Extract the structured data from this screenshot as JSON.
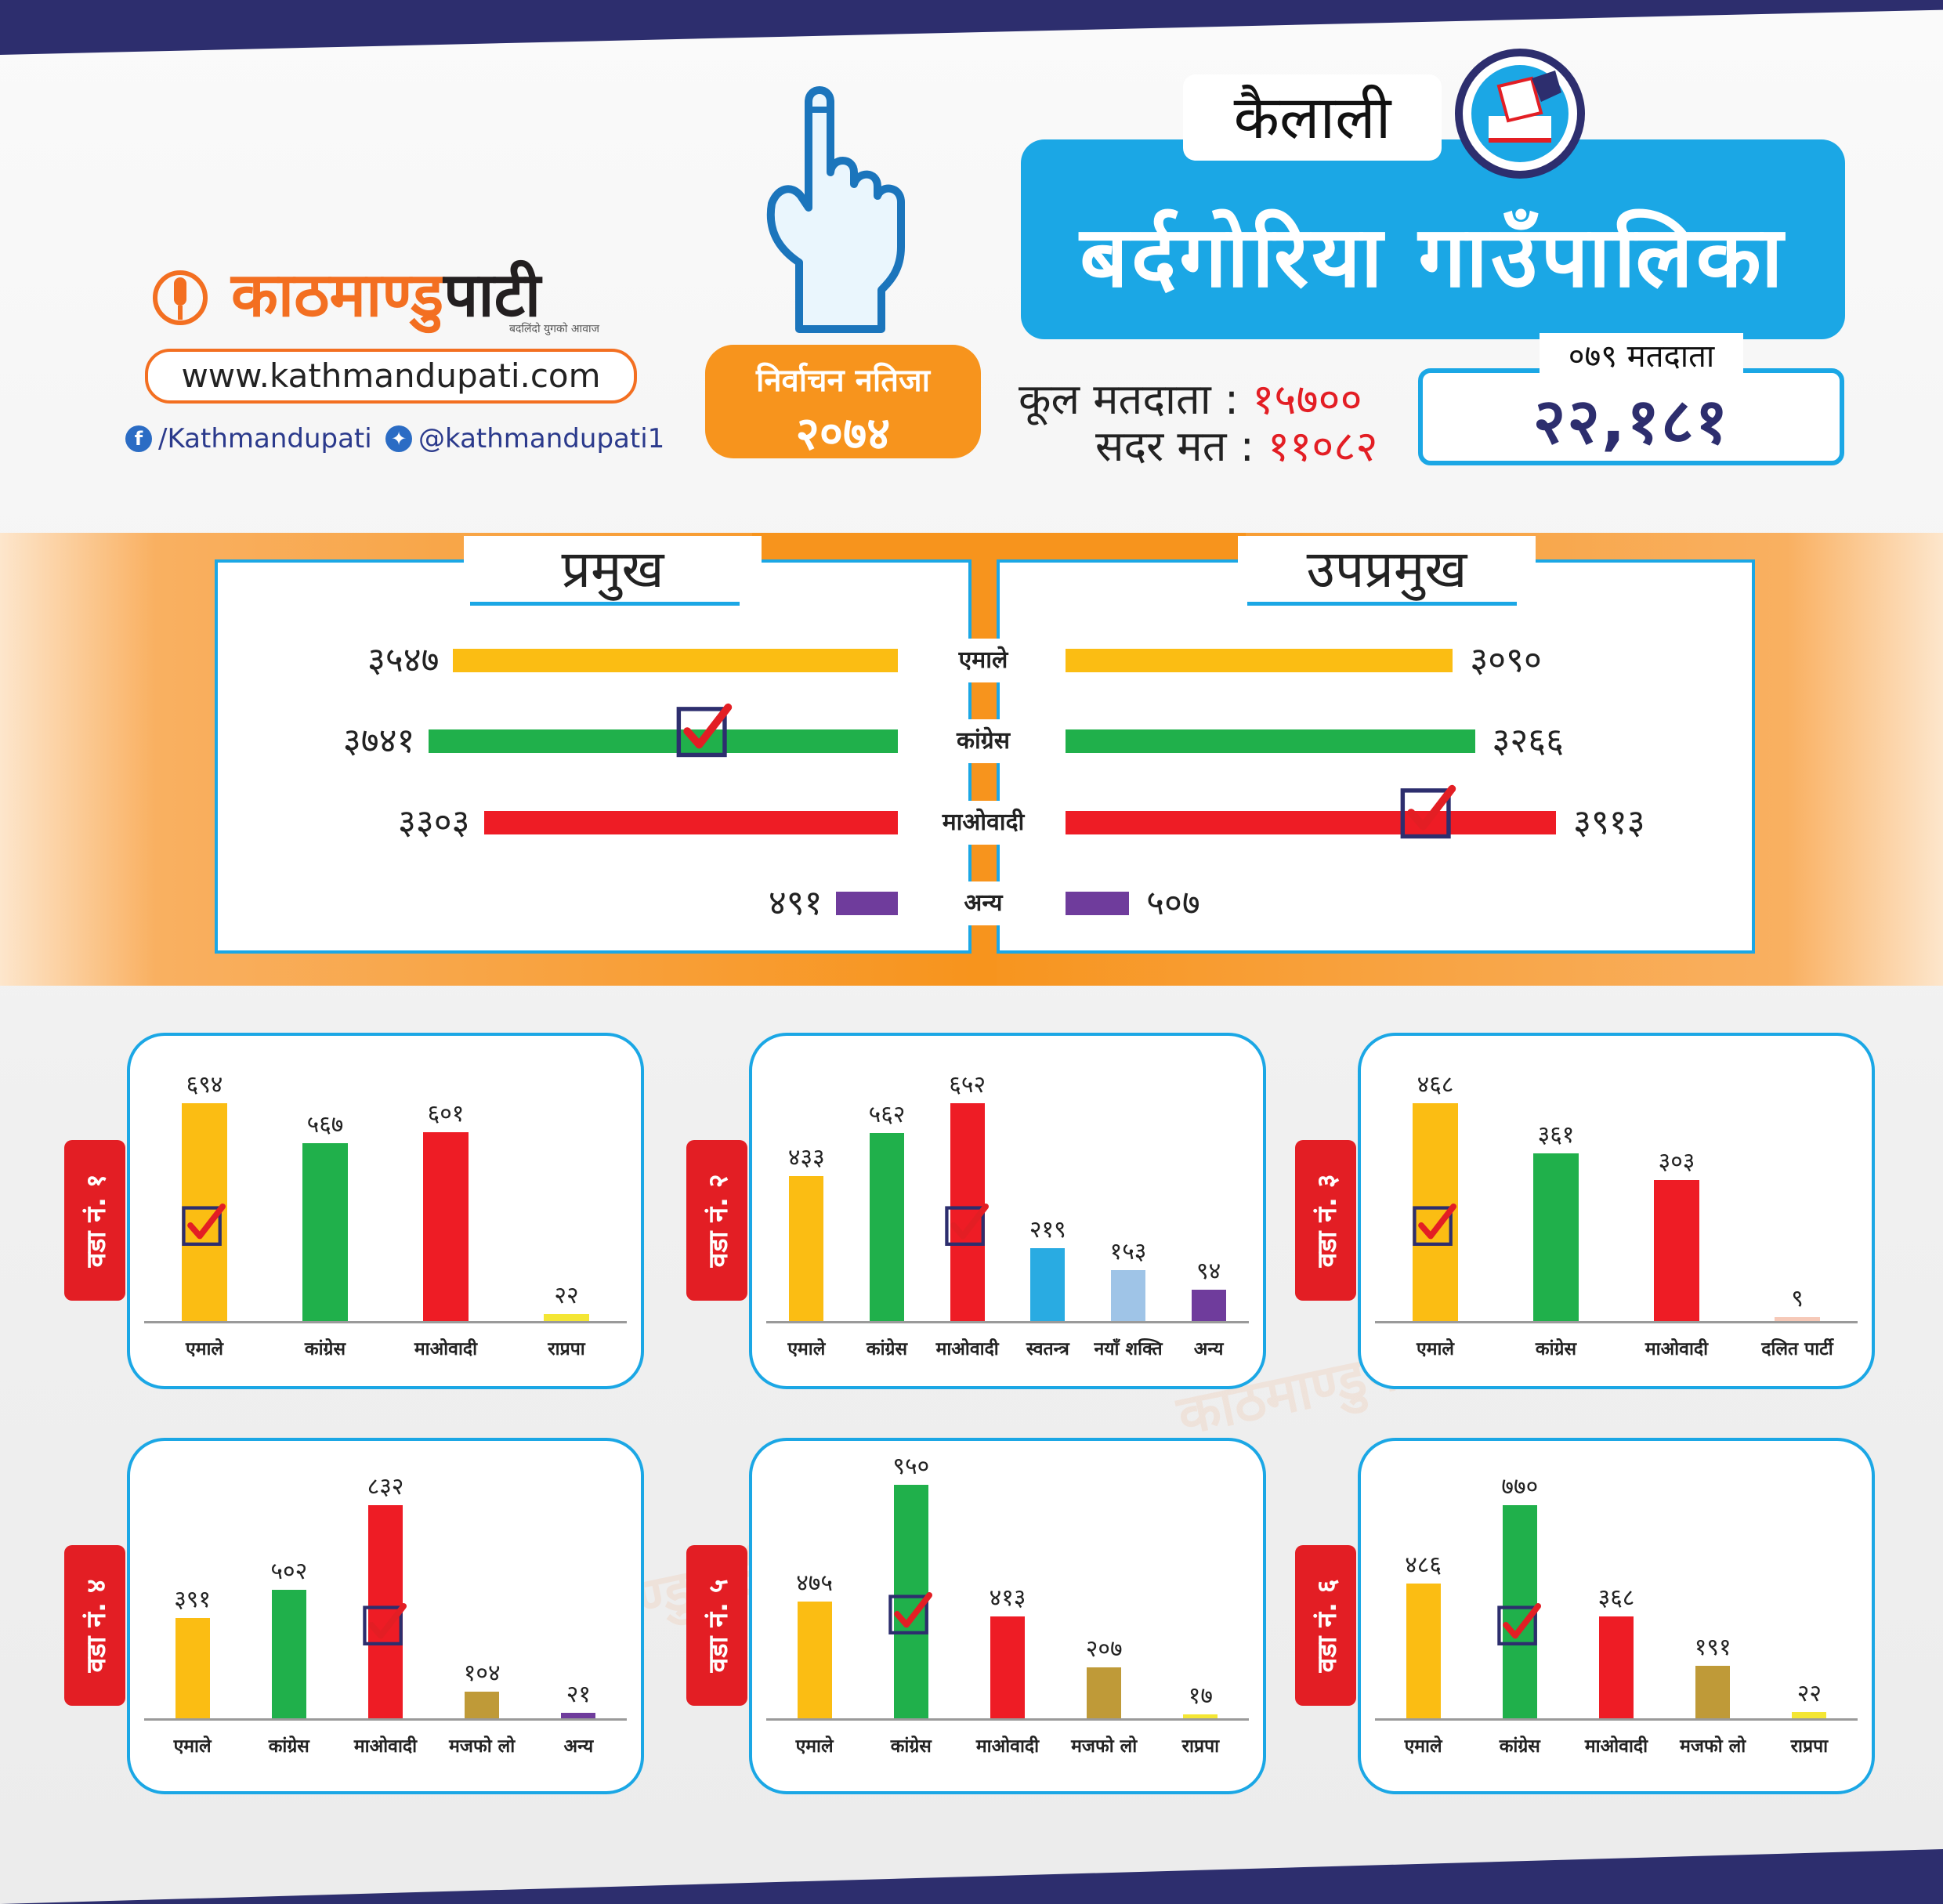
{
  "colors": {
    "navy": "#2d2e6e",
    "blue": "#1ba7e5",
    "orange": "#f7941d",
    "red": "#e31e24",
    "emale": "#fbbd13",
    "congress": "#20b04b",
    "maoist": "#ee1c25",
    "anya": "#6f3c9c",
    "rapra": "#f4e634",
    "swatantra": "#29abe2",
    "naya_shakti": "#9fc4e7",
    "majafo": "#bf9a38",
    "dalit": "#f6c9b8"
  },
  "brand": {
    "logo_prefix": "काठमाण्डु",
    "logo_suffix": "पाटी",
    "tagline": "बदलिंदो युगको आवाज",
    "website": "www.kathmandupati.com",
    "facebook": "/Kathmandupati",
    "twitter": "@kathmandupati1",
    "logo_icon": "mic-icon"
  },
  "result_badge": {
    "line1": "निर्वाचन नतिजा",
    "line2": "२०७४"
  },
  "header": {
    "district": "कैलाली",
    "municipality": "बर्दगोरिया गाउँपालिका",
    "total_voters_label": "कूल मतदाता :",
    "total_voters_value": "१५७००",
    "valid_votes_label": "सदर मत :",
    "valid_votes_value": "११०८२",
    "voters_079_label": "०७९ मतदाता",
    "voters_079_value": "२२,१८१"
  },
  "chart_data": [
    {
      "type": "bar",
      "orientation": "horizontal",
      "title": "प्रमुख",
      "categories": [
        "एमाले",
        "कांग्रेस",
        "माओवादी",
        "अन्य"
      ],
      "values": [
        3547,
        3741,
        3303,
        491
      ],
      "labels": [
        "३५४७",
        "३७४१",
        "३३०३",
        "४९१"
      ],
      "winner": "कांग्रेस",
      "xlim": [
        0,
        4000
      ]
    },
    {
      "type": "bar",
      "orientation": "horizontal",
      "title": "उपप्रमुख",
      "categories": [
        "एमाले",
        "कांग्रेस",
        "माओवादी",
        "अन्य"
      ],
      "values": [
        3090,
        3266,
        3913,
        507
      ],
      "labels": [
        "३०९०",
        "३२६६",
        "३९१३",
        "५०७"
      ],
      "winner": "माओवादी",
      "xlim": [
        0,
        4000
      ]
    },
    {
      "type": "bar",
      "title": "वडा नं. १",
      "categories": [
        "एमाले",
        "कांग्रेस",
        "माओवादी",
        "राप्रपा"
      ],
      "values": [
        694,
        567,
        601,
        22
      ],
      "labels": [
        "६९४",
        "५६७",
        "६०१",
        "२२"
      ],
      "colors": [
        "#fbbd13",
        "#20b04b",
        "#ee1c25",
        "#f4e634"
      ],
      "winner_index": 0,
      "ylim": [
        0,
        700
      ]
    },
    {
      "type": "bar",
      "title": "वडा नं. २",
      "categories": [
        "एमाले",
        "कांग्रेस",
        "माओवादी",
        "स्वतन्त्र",
        "नयाँ शक्ति",
        "अन्य"
      ],
      "values": [
        433,
        562,
        652,
        219,
        153,
        94
      ],
      "labels": [
        "४३३",
        "५६२",
        "६५२",
        "२१९",
        "१५३",
        "९४"
      ],
      "colors": [
        "#fbbd13",
        "#20b04b",
        "#ee1c25",
        "#29abe2",
        "#9fc4e7",
        "#6f3c9c"
      ],
      "winner_index": 2,
      "ylim": [
        0,
        652
      ]
    },
    {
      "type": "bar",
      "title": "वडा नं. ३",
      "categories": [
        "एमाले",
        "कांग्रेस",
        "माओवादी",
        "दलित पार्टी"
      ],
      "values": [
        468,
        361,
        303,
        9
      ],
      "labels": [
        "४६८",
        "३६१",
        "३०३",
        "९"
      ],
      "colors": [
        "#fbbd13",
        "#20b04b",
        "#ee1c25",
        "#f6c9b8"
      ],
      "winner_index": 0,
      "ylim": [
        0,
        468
      ]
    },
    {
      "type": "bar",
      "title": "वडा नं. ४",
      "categories": [
        "एमाले",
        "कांग्रेस",
        "माओवादी",
        "मजफो लो",
        "अन्य"
      ],
      "values": [
        391,
        502,
        832,
        104,
        21
      ],
      "labels": [
        "३९१",
        "५०२",
        "८३२",
        "१०४",
        "२१"
      ],
      "colors": [
        "#fbbd13",
        "#20b04b",
        "#ee1c25",
        "#bf9a38",
        "#6f3c9c"
      ],
      "winner_index": 2,
      "ylim": [
        0,
        832
      ]
    },
    {
      "type": "bar",
      "title": "वडा नं. ५",
      "categories": [
        "एमाले",
        "कांग्रेस",
        "माओवादी",
        "मजफो लो",
        "राप्रपा"
      ],
      "values": [
        475,
        950,
        413,
        207,
        17
      ],
      "labels": [
        "४७५",
        "९५०",
        "४१३",
        "२०७",
        "१७"
      ],
      "colors": [
        "#fbbd13",
        "#20b04b",
        "#ee1c25",
        "#bf9a38",
        "#f4e634"
      ],
      "winner_index": 1,
      "ylim": [
        0,
        950
      ]
    },
    {
      "type": "bar",
      "title": "वडा नं. ६",
      "categories": [
        "एमाले",
        "कांग्रेस",
        "माओवादी",
        "मजफो लो",
        "राप्रपा"
      ],
      "values": [
        486,
        770,
        368,
        191,
        22
      ],
      "labels": [
        "४८६",
        "७७०",
        "३६८",
        "१९१",
        "२२"
      ],
      "colors": [
        "#fbbd13",
        "#20b04b",
        "#ee1c25",
        "#bf9a38",
        "#f4e634"
      ],
      "winner_index": 1,
      "ylim": [
        0,
        770
      ]
    }
  ]
}
